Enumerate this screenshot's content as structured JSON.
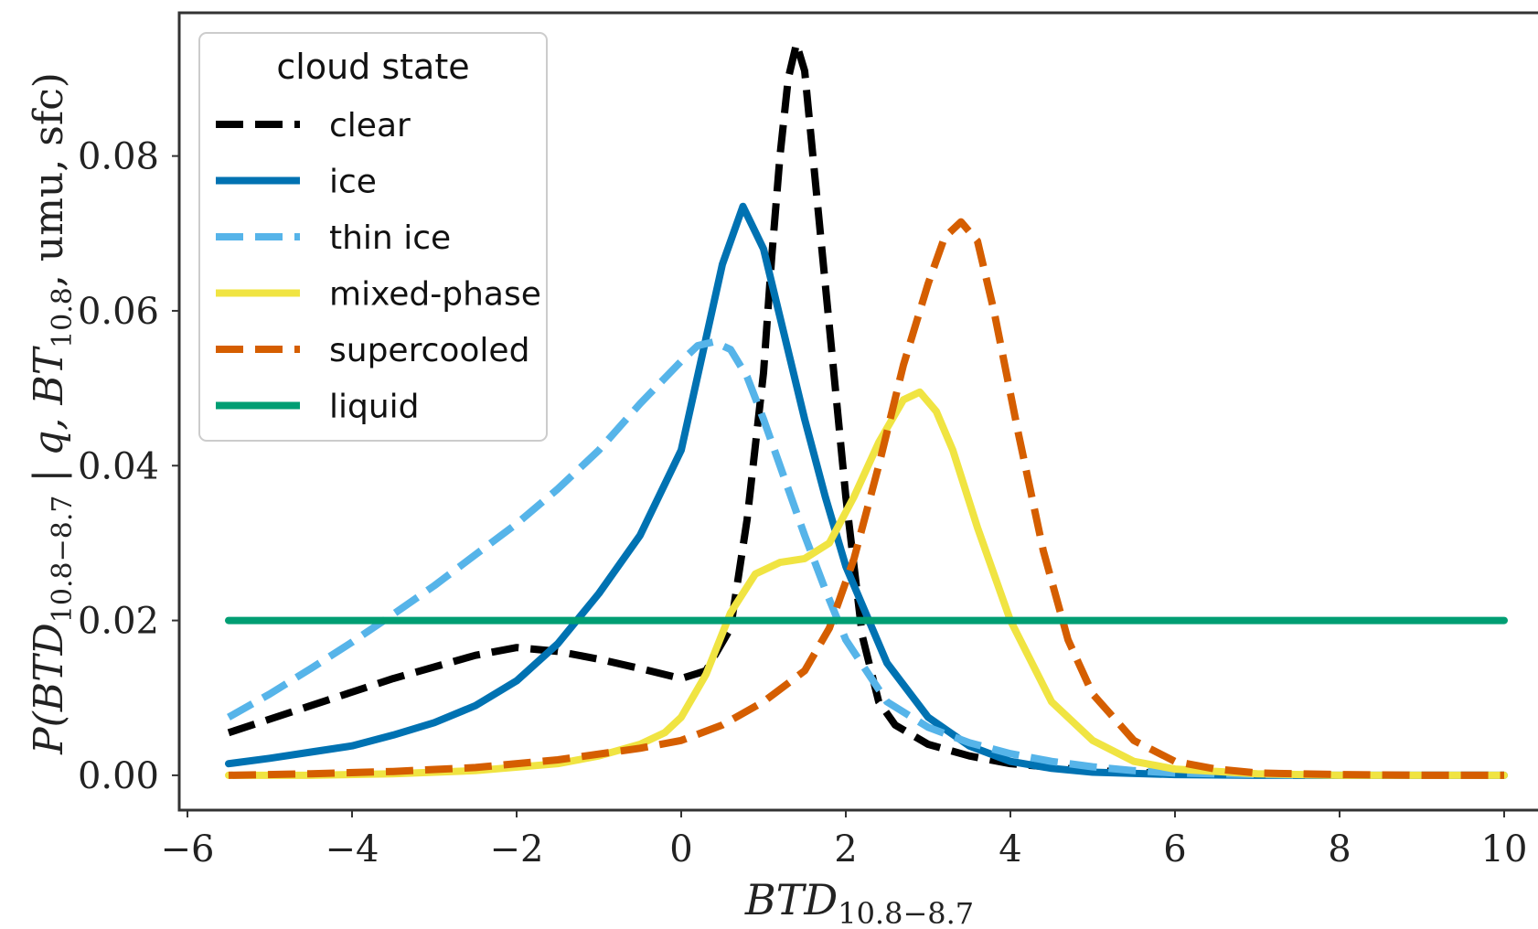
{
  "chart_data": {
    "type": "line",
    "xlabel": "BTD",
    "xlabel_sub": "10.8−8.7",
    "ylabel": "P(BTD",
    "ylabel_sub": "10.8−8.7",
    "ylabel_mid": " | q, BT",
    "ylabel_sub2": "10.8",
    "ylabel_end": ", umu, sfc)",
    "xlim": [
      -6.1,
      10.5
    ],
    "ylim": [
      -0.0045,
      0.0985
    ],
    "xticks": [
      -6,
      -4,
      -2,
      0,
      2,
      4,
      6,
      8,
      10
    ],
    "xtick_labels": [
      "−6",
      "−4",
      "−2",
      "0",
      "2",
      "4",
      "6",
      "8",
      "10"
    ],
    "yticks": [
      0.0,
      0.02,
      0.04,
      0.06,
      0.08
    ],
    "ytick_labels": [
      "0.00",
      "0.02",
      "0.04",
      "0.06",
      "0.08"
    ],
    "grid": false,
    "legend": {
      "title": "cloud state",
      "placement": "top-left"
    },
    "series": [
      {
        "name": "clear",
        "color": "#000000",
        "dash": true,
        "x": [
          -5.5,
          -4.5,
          -3.5,
          -2.5,
          -2.0,
          -1.5,
          -1.0,
          -0.5,
          0.0,
          0.3,
          0.6,
          0.8,
          1.0,
          1.1,
          1.2,
          1.3,
          1.4,
          1.5,
          1.6,
          1.8,
          2.0,
          2.2,
          2.4,
          2.6,
          3.0,
          3.5,
          4.0,
          5.0,
          6.0,
          7.0,
          8.0,
          9.0,
          10.0
        ],
        "y": [
          0.0055,
          0.009,
          0.0125,
          0.0155,
          0.0165,
          0.016,
          0.015,
          0.0138,
          0.0125,
          0.0135,
          0.019,
          0.033,
          0.052,
          0.067,
          0.08,
          0.09,
          0.0945,
          0.091,
          0.08,
          0.058,
          0.036,
          0.018,
          0.0095,
          0.0065,
          0.004,
          0.0025,
          0.0015,
          0.0006,
          0.0002,
          0.0001,
          0.0,
          0.0,
          0.0
        ]
      },
      {
        "name": "ice",
        "color": "#0072B2",
        "dash": false,
        "x": [
          -5.5,
          -5.0,
          -4.5,
          -4.0,
          -3.5,
          -3.0,
          -2.5,
          -2.0,
          -1.5,
          -1.0,
          -0.5,
          0.0,
          0.25,
          0.5,
          0.75,
          1.0,
          1.25,
          1.5,
          1.75,
          2.0,
          2.5,
          3.0,
          3.5,
          4.0,
          4.5,
          5.0,
          6.0,
          7.0,
          8.0,
          9.0,
          10.0
        ],
        "y": [
          0.0015,
          0.0022,
          0.003,
          0.0038,
          0.0052,
          0.0068,
          0.009,
          0.0122,
          0.017,
          0.0235,
          0.031,
          0.042,
          0.054,
          0.066,
          0.0735,
          0.068,
          0.057,
          0.046,
          0.036,
          0.027,
          0.0145,
          0.0075,
          0.0038,
          0.0018,
          0.0009,
          0.0004,
          0.0001,
          0.0,
          0.0,
          0.0,
          0.0
        ]
      },
      {
        "name": "thin ice",
        "color": "#56B4E9",
        "dash": true,
        "x": [
          -5.5,
          -5.0,
          -4.5,
          -4.0,
          -3.5,
          -3.0,
          -2.5,
          -2.0,
          -1.5,
          -1.0,
          -0.5,
          0.0,
          0.2,
          0.4,
          0.6,
          0.8,
          1.0,
          1.25,
          1.5,
          1.75,
          2.0,
          2.5,
          3.0,
          3.5,
          4.0,
          4.5,
          5.0,
          5.5,
          6.0,
          7.0,
          8.0,
          9.0,
          10.0
        ],
        "y": [
          0.0075,
          0.0105,
          0.0138,
          0.0172,
          0.0208,
          0.0245,
          0.0285,
          0.0325,
          0.037,
          0.042,
          0.048,
          0.0535,
          0.0555,
          0.056,
          0.055,
          0.0515,
          0.046,
          0.0385,
          0.031,
          0.024,
          0.0175,
          0.0095,
          0.0062,
          0.0042,
          0.0028,
          0.0018,
          0.0011,
          0.0006,
          0.0003,
          0.0001,
          0.0,
          0.0,
          0.0
        ]
      },
      {
        "name": "mixed-phase",
        "color": "#F0E442",
        "dash": false,
        "x": [
          -5.5,
          -4.5,
          -3.5,
          -2.5,
          -1.5,
          -1.0,
          -0.5,
          -0.2,
          0.0,
          0.3,
          0.6,
          0.9,
          1.2,
          1.5,
          1.8,
          2.1,
          2.4,
          2.7,
          2.9,
          3.1,
          3.3,
          3.6,
          4.0,
          4.5,
          5.0,
          5.5,
          6.0,
          7.0,
          8.0,
          9.0,
          10.0
        ],
        "y": [
          0.0,
          0.0,
          0.0002,
          0.0006,
          0.0015,
          0.0025,
          0.004,
          0.0055,
          0.0075,
          0.013,
          0.021,
          0.026,
          0.0275,
          0.028,
          0.03,
          0.036,
          0.043,
          0.0485,
          0.0495,
          0.047,
          0.042,
          0.032,
          0.02,
          0.0095,
          0.0045,
          0.0018,
          0.0008,
          0.0002,
          0.0,
          0.0,
          0.0
        ]
      },
      {
        "name": "supercooled",
        "color": "#D55E00",
        "dash": true,
        "x": [
          -5.5,
          -4.5,
          -3.5,
          -2.5,
          -1.5,
          -0.5,
          0.0,
          0.5,
          1.0,
          1.5,
          1.8,
          2.1,
          2.4,
          2.7,
          3.0,
          3.2,
          3.4,
          3.6,
          3.8,
          4.1,
          4.4,
          4.7,
          5.0,
          5.5,
          6.0,
          6.5,
          7.0,
          8.0,
          9.0,
          10.0
        ],
        "y": [
          0.0,
          0.0002,
          0.0005,
          0.001,
          0.002,
          0.0035,
          0.0045,
          0.0065,
          0.0095,
          0.0135,
          0.019,
          0.028,
          0.04,
          0.053,
          0.0635,
          0.0695,
          0.0715,
          0.069,
          0.06,
          0.044,
          0.029,
          0.0175,
          0.0105,
          0.0045,
          0.0018,
          0.0008,
          0.0003,
          0.0001,
          0.0,
          0.0
        ]
      },
      {
        "name": "liquid",
        "color": "#009E73",
        "dash": false,
        "x": [
          -5.5,
          10.0
        ],
        "y": [
          0.02,
          0.02
        ]
      }
    ]
  }
}
